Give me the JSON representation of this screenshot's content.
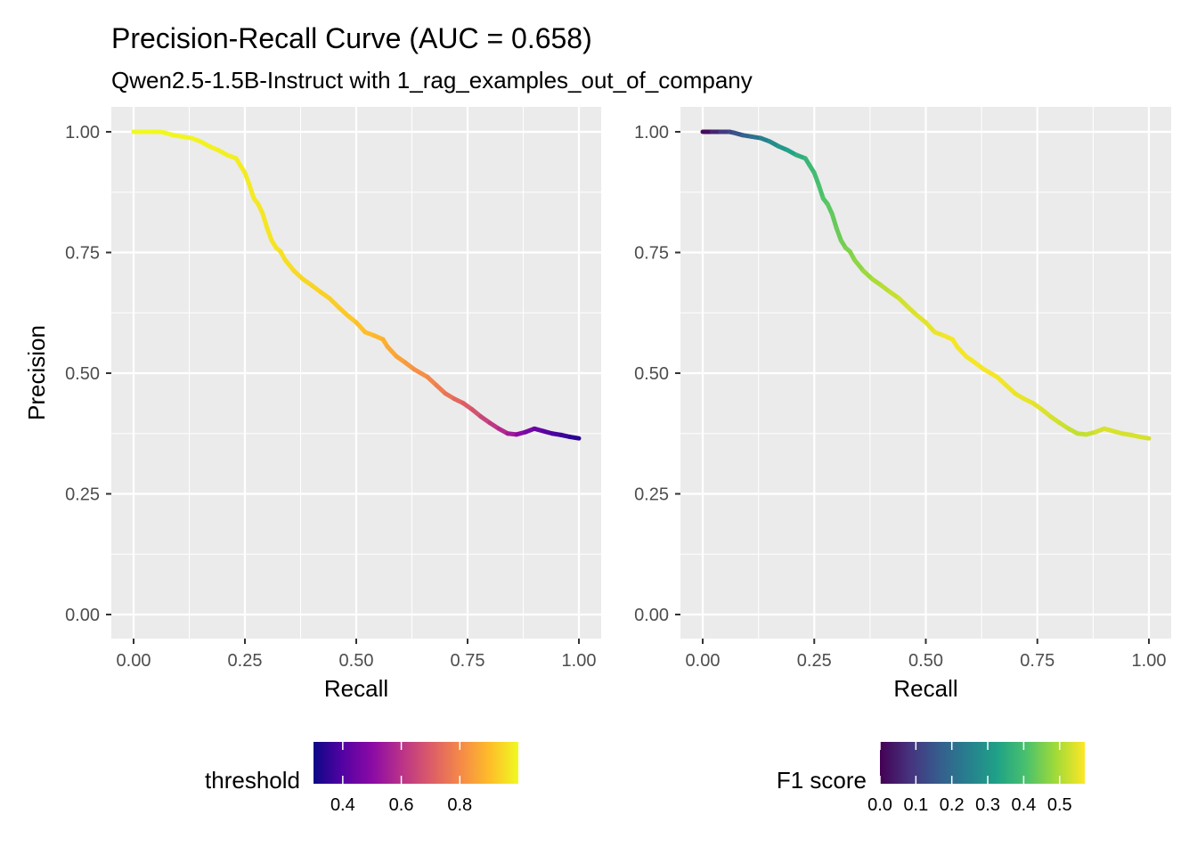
{
  "chart": {
    "title": "Precision-Recall Curve (AUC = 0.658)",
    "subtitle": "Qwen2.5-1.5B-Instruct with 1_rag_examples_out_of_company"
  },
  "chart_data": [
    {
      "type": "line",
      "panel": "left",
      "xlabel": "Recall",
      "ylabel": "Precision",
      "xlim": [
        0,
        1
      ],
      "ylim": [
        0,
        1
      ],
      "x_ticks": [
        "0.00",
        "0.25",
        "0.50",
        "0.75",
        "1.00"
      ],
      "y_ticks": [
        "0.00",
        "0.25",
        "0.50",
        "0.75",
        "1.00"
      ],
      "grid": true,
      "color_by": "threshold",
      "palette": "plasma",
      "legend": {
        "title": "threshold",
        "ticks": [
          "0.4",
          "0.6",
          "0.8"
        ],
        "tick_values": [
          0.4,
          0.6,
          0.8
        ],
        "range": [
          0.3,
          1.0
        ],
        "position": "bottom"
      },
      "series": [
        {
          "x": [
            0.0,
            0.02,
            0.04,
            0.06,
            0.07,
            0.09,
            0.11,
            0.13,
            0.15,
            0.17,
            0.19,
            0.21,
            0.23,
            0.24,
            0.25,
            0.26,
            0.27,
            0.28,
            0.29,
            0.3,
            0.31,
            0.32,
            0.33,
            0.34,
            0.36,
            0.38,
            0.4,
            0.42,
            0.44,
            0.46,
            0.48,
            0.5,
            0.52,
            0.54,
            0.56,
            0.57,
            0.59,
            0.61,
            0.63,
            0.66,
            0.68,
            0.7,
            0.72,
            0.74,
            0.76,
            0.78,
            0.8,
            0.82,
            0.84,
            0.86,
            0.88,
            0.9,
            0.92,
            0.94,
            0.96,
            0.98,
            1.0
          ],
          "y": [
            1.0,
            1.0,
            1.0,
            1.0,
            0.998,
            0.993,
            0.99,
            0.987,
            0.98,
            0.97,
            0.962,
            0.952,
            0.945,
            0.93,
            0.915,
            0.89,
            0.862,
            0.85,
            0.83,
            0.8,
            0.775,
            0.76,
            0.752,
            0.735,
            0.712,
            0.695,
            0.682,
            0.668,
            0.655,
            0.637,
            0.62,
            0.605,
            0.585,
            0.578,
            0.57,
            0.555,
            0.535,
            0.522,
            0.508,
            0.492,
            0.475,
            0.458,
            0.447,
            0.438,
            0.425,
            0.41,
            0.397,
            0.385,
            0.375,
            0.373,
            0.378,
            0.385,
            0.38,
            0.375,
            0.372,
            0.368,
            0.365
          ],
          "color_values": [
            1.0,
            1.0,
            1.0,
            1.0,
            0.998,
            0.996,
            0.994,
            0.992,
            0.99,
            0.988,
            0.986,
            0.984,
            0.982,
            0.98,
            0.978,
            0.976,
            0.974,
            0.972,
            0.97,
            0.968,
            0.966,
            0.964,
            0.962,
            0.96,
            0.95,
            0.945,
            0.94,
            0.935,
            0.93,
            0.925,
            0.92,
            0.915,
            0.905,
            0.895,
            0.885,
            0.87,
            0.855,
            0.84,
            0.825,
            0.805,
            0.785,
            0.765,
            0.74,
            0.715,
            0.69,
            0.66,
            0.63,
            0.6,
            0.565,
            0.52,
            0.48,
            0.445,
            0.42,
            0.395,
            0.375,
            0.355,
            0.335
          ]
        }
      ]
    },
    {
      "type": "line",
      "panel": "right",
      "xlabel": "Recall",
      "ylabel": "",
      "xlim": [
        0,
        1
      ],
      "ylim": [
        0,
        1
      ],
      "x_ticks": [
        "0.00",
        "0.25",
        "0.50",
        "0.75",
        "1.00"
      ],
      "y_ticks": [
        "0.00",
        "0.25",
        "0.50",
        "0.75",
        "1.00"
      ],
      "grid": true,
      "color_by": "F1 score",
      "palette": "viridis",
      "legend": {
        "title": "F1 score",
        "ticks": [
          "0.0",
          "0.1",
          "0.2",
          "0.3",
          "0.4",
          "0.5"
        ],
        "tick_values": [
          0.0,
          0.1,
          0.2,
          0.3,
          0.4,
          0.5
        ],
        "range": [
          0.0,
          0.57
        ],
        "position": "bottom"
      },
      "series": [
        {
          "x": [
            0.0,
            0.02,
            0.04,
            0.06,
            0.07,
            0.09,
            0.11,
            0.13,
            0.15,
            0.17,
            0.19,
            0.21,
            0.23,
            0.24,
            0.25,
            0.26,
            0.27,
            0.28,
            0.29,
            0.3,
            0.31,
            0.32,
            0.33,
            0.34,
            0.36,
            0.38,
            0.4,
            0.42,
            0.44,
            0.46,
            0.48,
            0.5,
            0.52,
            0.54,
            0.56,
            0.57,
            0.59,
            0.61,
            0.63,
            0.66,
            0.68,
            0.7,
            0.72,
            0.74,
            0.76,
            0.78,
            0.8,
            0.82,
            0.84,
            0.86,
            0.88,
            0.9,
            0.92,
            0.94,
            0.96,
            0.98,
            1.0
          ],
          "y": [
            1.0,
            1.0,
            1.0,
            1.0,
            0.998,
            0.993,
            0.99,
            0.987,
            0.98,
            0.97,
            0.962,
            0.952,
            0.945,
            0.93,
            0.915,
            0.89,
            0.862,
            0.85,
            0.83,
            0.8,
            0.775,
            0.76,
            0.752,
            0.735,
            0.712,
            0.695,
            0.682,
            0.668,
            0.655,
            0.637,
            0.62,
            0.605,
            0.585,
            0.578,
            0.57,
            0.555,
            0.535,
            0.522,
            0.508,
            0.492,
            0.475,
            0.458,
            0.447,
            0.438,
            0.425,
            0.41,
            0.397,
            0.385,
            0.375,
            0.373,
            0.378,
            0.385,
            0.38,
            0.375,
            0.372,
            0.368,
            0.365
          ]
        }
      ]
    }
  ]
}
